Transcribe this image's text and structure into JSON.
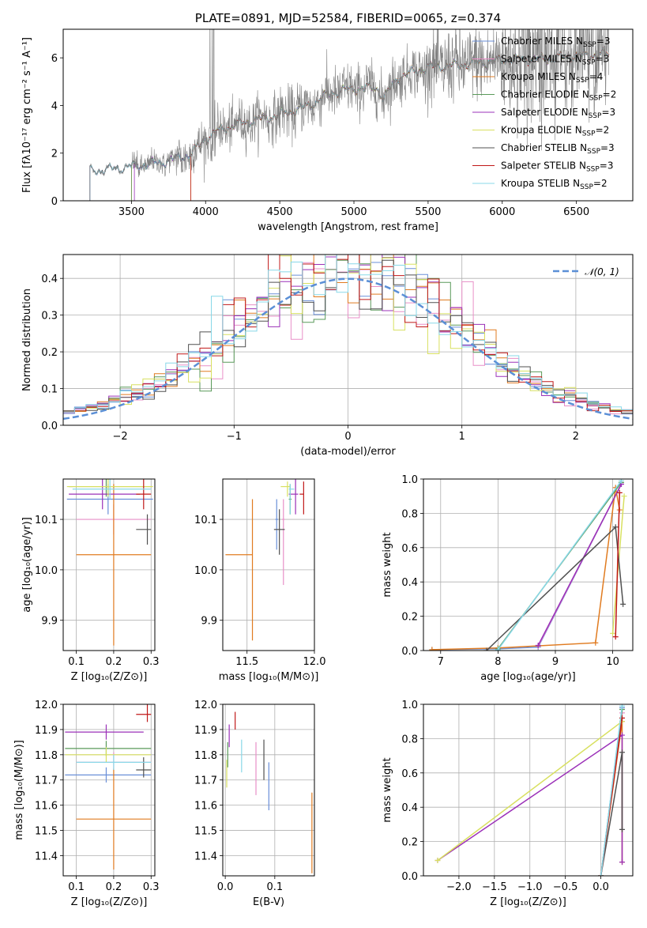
{
  "colors": {
    "Chabrier MILES": "#6a8fd8",
    "Salpeter MILES": "#e88fc8",
    "Kroupa MILES": "#e07b20",
    "Chabrier ELODIE": "#5a9a5a",
    "Salpeter ELODIE": "#9b30b8",
    "Kroupa ELODIE": "#d8e060",
    "Chabrier STELIB": "#505050",
    "Salpeter STELIB": "#c01818",
    "Kroupa STELIB": "#88d8e8",
    "spectrum": "#808080",
    "normal": "#5b8fd6"
  },
  "chart_data": [
    {
      "id": "spectrum",
      "type": "line",
      "title": "PLATE=0891, MJD=52584, FIBERID=0065, z=0.374",
      "xlabel": "wavelength [Angstrom, rest frame]",
      "ylabel": "Flux [fλ10⁻¹⁷ erg cm⁻² s⁻¹ A⁻¹]",
      "xlim": [
        3040,
        6880
      ],
      "ylim": [
        0,
        7.2
      ],
      "xticks": [
        3500,
        4000,
        4500,
        5000,
        5500,
        6000,
        6500
      ],
      "yticks": [
        0,
        2,
        4,
        6
      ],
      "grid": false,
      "legend_position": "top-right",
      "legend": [
        {
          "name": "Chabrier MILES",
          "sub": "N",
          "subs": "SSP",
          "val": "=3"
        },
        {
          "name": "Salpeter MILES",
          "sub": "N",
          "subs": "SSP",
          "val": "=3"
        },
        {
          "name": "Kroupa MILES",
          "sub": "N",
          "subs": "SSP",
          "val": "=4"
        },
        {
          "name": "Chabrier ELODIE",
          "sub": "N",
          "subs": "SSP",
          "val": "=2"
        },
        {
          "name": "Salpeter ELODIE",
          "sub": "N",
          "subs": "SSP",
          "val": "=3"
        },
        {
          "name": "Kroupa ELODIE",
          "sub": "N",
          "subs": "SSP",
          "val": "=2"
        },
        {
          "name": "Chabrier STELIB",
          "sub": "N",
          "subs": "SSP",
          "val": "=3"
        },
        {
          "name": "Salpeter STELIB",
          "sub": "N",
          "subs": "SSP",
          "val": "=3"
        },
        {
          "name": "Kroupa STELIB",
          "sub": "N",
          "subs": "SSP",
          "val": "=2"
        }
      ],
      "continuum_knots": [
        [
          3220,
          1.25
        ],
        [
          3400,
          1.35
        ],
        [
          3500,
          1.45
        ],
        [
          3700,
          1.6
        ],
        [
          3900,
          1.95
        ],
        [
          4000,
          2.6
        ],
        [
          4100,
          3.0
        ],
        [
          4300,
          3.35
        ],
        [
          4500,
          3.6
        ],
        [
          4700,
          4.0
        ],
        [
          4850,
          4.55
        ],
        [
          5000,
          4.7
        ],
        [
          5150,
          4.75
        ],
        [
          5200,
          4.3
        ],
        [
          5300,
          5.2
        ],
        [
          5500,
          5.6
        ],
        [
          5700,
          5.7
        ],
        [
          6000,
          5.9
        ],
        [
          6300,
          5.95
        ],
        [
          6500,
          6.1
        ],
        [
          6700,
          6.15
        ]
      ],
      "model_starts": [
        3220,
        3220,
        3500,
        3500,
        3520,
        3900,
        3220,
        3900,
        3220
      ]
    },
    {
      "id": "residuals",
      "type": "bar",
      "xlabel": "(data-model)/error",
      "ylabel": "Normed distribution",
      "xlim": [
        -2.5,
        2.5
      ],
      "ylim": [
        0,
        0.465
      ],
      "xticks": [
        -2,
        -1,
        0,
        1,
        2
      ],
      "yticks": [
        0.0,
        0.1,
        0.2,
        0.3,
        0.4
      ],
      "grid": true,
      "legend_position": "top-right",
      "legend": [
        {
          "name": "𝒩(0, 1)"
        }
      ],
      "bin_width": 0.1
    },
    {
      "id": "age-vs-Z",
      "type": "scatter",
      "xlabel": "Z [log₁₀(Z/Z⊙)]",
      "ylabel": "age  [log₁₀(age/yr)]",
      "xlim": [
        0.065,
        0.31
      ],
      "ylim": [
        9.84,
        10.18
      ],
      "xticks": [
        0.1,
        0.2,
        0.3
      ],
      "yticks": [
        9.9,
        10.0,
        10.1
      ],
      "grid": true,
      "points": [
        {
          "model": "Chabrier MILES",
          "x": 0.185,
          "y": 10.14,
          "xerr": [
            0.11,
            0.12
          ],
          "yerr": [
            0.03,
            0.03
          ]
        },
        {
          "model": "Salpeter MILES",
          "x": 0.2,
          "y": 10.1,
          "xerr": [
            0.1,
            0.1
          ],
          "yerr": [
            0.03,
            0.03
          ]
        },
        {
          "model": "Kroupa MILES",
          "x": 0.2,
          "y": 10.03,
          "xerr": [
            0.1,
            0.1
          ],
          "yerr": [
            0.18,
            0.14
          ]
        },
        {
          "model": "Chabrier ELODIE",
          "x": 0.18,
          "y": 10.165,
          "xerr": [
            0.1,
            0.12
          ],
          "yerr": [
            0.02,
            0.02
          ]
        },
        {
          "model": "Salpeter ELODIE",
          "x": 0.17,
          "y": 10.15,
          "xerr": [
            0.09,
            0.1
          ],
          "yerr": [
            0.03,
            0.03
          ]
        },
        {
          "model": "Kroupa ELODIE",
          "x": 0.185,
          "y": 10.165,
          "xerr": [
            0.11,
            0.12
          ],
          "yerr": [
            0.02,
            0.02
          ]
        },
        {
          "model": "Chabrier STELIB",
          "x": 0.29,
          "y": 10.08,
          "xerr": [
            0.03,
            0.01
          ],
          "yerr": [
            0.03,
            0.03
          ]
        },
        {
          "model": "Salpeter STELIB",
          "x": 0.28,
          "y": 10.15,
          "xerr": [
            0.02,
            0.02
          ],
          "yerr": [
            0.03,
            0.03
          ]
        },
        {
          "model": "Kroupa STELIB",
          "x": 0.19,
          "y": 10.16,
          "xerr": [
            0.1,
            0.11
          ],
          "yerr": [
            0.02,
            0.02
          ]
        }
      ]
    },
    {
      "id": "age-vs-mass",
      "type": "scatter",
      "xlabel": "mass [log₁₀(M/M⊙)]",
      "ylabel": "",
      "xlim": [
        11.32,
        12.0
      ],
      "ylim": [
        9.84,
        10.18
      ],
      "xticks": [
        11.5,
        12.0
      ],
      "yticks": [
        9.9,
        10.0,
        10.1
      ],
      "grid": true,
      "points": [
        {
          "model": "Chabrier MILES",
          "x": 11.72,
          "y": 10.1,
          "xerr": [
            0.01,
            0.01
          ],
          "yerr": [
            0.06,
            0.04
          ]
        },
        {
          "model": "Salpeter MILES",
          "x": 11.77,
          "y": 10.1,
          "xerr": [
            0.01,
            0.01
          ],
          "yerr": [
            0.13,
            0.04
          ]
        },
        {
          "model": "Kroupa MILES",
          "x": 11.54,
          "y": 10.03,
          "xerr": [
            0.2,
            0.0
          ],
          "yerr": [
            0.17,
            0.11
          ]
        },
        {
          "model": "Chabrier ELODIE",
          "x": 11.82,
          "y": 10.14,
          "xerr": [
            0.01,
            0.01
          ],
          "yerr": [
            0.03,
            0.03
          ]
        },
        {
          "model": "Salpeter ELODIE",
          "x": 11.86,
          "y": 10.15,
          "xerr": [
            0.05,
            0.02
          ],
          "yerr": [
            0.04,
            0.03
          ]
        },
        {
          "model": "Kroupa ELODIE",
          "x": 11.8,
          "y": 10.165,
          "xerr": [
            0.05,
            0.02
          ],
          "yerr": [
            0.02,
            0.01
          ]
        },
        {
          "model": "Chabrier STELIB",
          "x": 11.74,
          "y": 10.08,
          "xerr": [
            0.04,
            0.04
          ],
          "yerr": [
            0.05,
            0.04
          ]
        },
        {
          "model": "Salpeter STELIB",
          "x": 11.92,
          "y": 10.15,
          "xerr": [
            0.03,
            0.0
          ],
          "yerr": [
            0.04,
            0.025
          ]
        },
        {
          "model": "Kroupa STELIB",
          "x": 11.82,
          "y": 10.16,
          "xerr": [
            0.01,
            0.03
          ],
          "yerr": [
            0.05,
            0.01
          ]
        }
      ]
    },
    {
      "id": "mass-weight-vs-age",
      "type": "line",
      "xlabel": "age  [log₁₀(age/yr)]",
      "ylabel": "mass weight",
      "xlim": [
        6.7,
        10.35
      ],
      "ylim": [
        0,
        1.0
      ],
      "xticks": [
        7,
        8,
        9,
        10
      ],
      "yticks": [
        0.0,
        0.2,
        0.4,
        0.6,
        0.8,
        1.0
      ],
      "grid": true,
      "series": [
        {
          "model": "Chabrier MILES",
          "x": [
            6.85,
            8.0,
            8.7,
            10.15
          ],
          "y": [
            0.005,
            0.01,
            0.02,
            0.97
          ]
        },
        {
          "model": "Salpeter MILES",
          "x": [
            8.7,
            10.15
          ],
          "y": [
            0.025,
            0.97
          ]
        },
        {
          "model": "Kroupa MILES",
          "x": [
            6.85,
            8.0,
            9.7,
            10.05,
            10.12
          ],
          "y": [
            0.005,
            0.015,
            0.045,
            0.95,
            0.82
          ]
        },
        {
          "model": "Chabrier ELODIE",
          "x": [
            8.0,
            10.15
          ],
          "y": [
            0.01,
            0.98
          ]
        },
        {
          "model": "Salpeter ELODIE",
          "x": [
            8.7,
            10.15
          ],
          "y": [
            0.03,
            0.97
          ]
        },
        {
          "model": "Kroupa ELODIE",
          "x": [
            10.0,
            10.2
          ],
          "y": [
            0.1,
            0.9
          ]
        },
        {
          "model": "Chabrier STELIB",
          "x": [
            7.8,
            10.05,
            10.18
          ],
          "y": [
            0.0,
            0.72,
            0.27
          ]
        },
        {
          "model": "Salpeter STELIB",
          "x": [
            10.05,
            10.12
          ],
          "y": [
            0.08,
            0.92
          ]
        },
        {
          "model": "Kroupa STELIB",
          "x": [
            8.0,
            10.15
          ],
          "y": [
            0.005,
            0.99
          ]
        }
      ]
    },
    {
      "id": "mass-vs-Z",
      "type": "scatter",
      "xlabel": "Z [log₁₀(Z/Z⊙)]",
      "ylabel": "mass [log₁₀(M/M⊙)]",
      "xlim": [
        0.065,
        0.31
      ],
      "ylim": [
        11.32,
        12.0
      ],
      "xticks": [
        0.1,
        0.2,
        0.3
      ],
      "yticks": [
        11.4,
        11.5,
        11.6,
        11.7,
        11.8,
        11.9,
        12.0
      ],
      "grid": true,
      "points": [
        {
          "model": "Chabrier MILES",
          "x": 0.18,
          "y": 11.72,
          "xerr": [
            0.11,
            0.12
          ],
          "yerr": [
            0.03,
            0.03
          ]
        },
        {
          "model": "Salpeter MILES",
          "x": 0.2,
          "y": 11.77,
          "xerr": [
            0.1,
            0.1
          ],
          "yerr": [
            0.03,
            0.04
          ]
        },
        {
          "model": "Kroupa MILES",
          "x": 0.2,
          "y": 11.545,
          "xerr": [
            0.1,
            0.1
          ],
          "yerr": [
            0.2,
            0.2
          ]
        },
        {
          "model": "Chabrier ELODIE",
          "x": 0.18,
          "y": 11.825,
          "xerr": [
            0.11,
            0.12
          ],
          "yerr": [
            0.03,
            0.03
          ]
        },
        {
          "model": "Salpeter ELODIE",
          "x": 0.18,
          "y": 11.89,
          "xerr": [
            0.11,
            0.1
          ],
          "yerr": [
            0.03,
            0.03
          ]
        },
        {
          "model": "Kroupa ELODIE",
          "x": 0.18,
          "y": 11.8,
          "xerr": [
            0.11,
            0.12
          ],
          "yerr": [
            0.03,
            0.03
          ]
        },
        {
          "model": "Chabrier STELIB",
          "x": 0.28,
          "y": 11.74,
          "xerr": [
            0.02,
            0.02
          ],
          "yerr": [
            0.03,
            0.05
          ]
        },
        {
          "model": "Salpeter STELIB",
          "x": 0.29,
          "y": 11.96,
          "xerr": [
            0.03,
            0.01
          ],
          "yerr": [
            0.03,
            0.04
          ]
        },
        {
          "model": "Kroupa STELIB",
          "x": 0.2,
          "y": 11.77,
          "xerr": [
            0.1,
            0.1
          ],
          "yerr": [
            0.03,
            0.03
          ]
        }
      ]
    },
    {
      "id": "mass-vs-EBV",
      "type": "scatter",
      "xlabel": "E(B-V)",
      "ylabel": "",
      "xlim": [
        -0.005,
        0.18
      ],
      "ylim": [
        11.32,
        12.0
      ],
      "xticks": [
        0.0,
        0.1
      ],
      "yticks": [
        11.4,
        11.5,
        11.6,
        11.7,
        11.8,
        11.9,
        12.0
      ],
      "grid": true,
      "points": [
        {
          "model": "Chabrier MILES",
          "x": 0.088,
          "y": 11.7,
          "yerr": [
            0.12,
            0.07
          ]
        },
        {
          "model": "Salpeter MILES",
          "x": 0.062,
          "y": 11.76,
          "yerr": [
            0.12,
            0.09
          ]
        },
        {
          "model": "Kroupa MILES",
          "x": 0.175,
          "y": 11.5,
          "yerr": [
            0.17,
            0.15
          ]
        },
        {
          "model": "Chabrier ELODIE",
          "x": 0.005,
          "y": 11.8,
          "yerr": [
            0.05,
            0.05
          ]
        },
        {
          "model": "Salpeter ELODIE",
          "x": 0.008,
          "y": 11.88,
          "yerr": [
            0.05,
            0.04
          ]
        },
        {
          "model": "Kroupa ELODIE",
          "x": 0.003,
          "y": 11.72,
          "yerr": [
            0.05,
            0.06
          ]
        },
        {
          "model": "Chabrier STELIB",
          "x": 0.078,
          "y": 11.8,
          "yerr": [
            0.1,
            0.06
          ]
        },
        {
          "model": "Salpeter STELIB",
          "x": 0.02,
          "y": 11.93,
          "yerr": [
            0.03,
            0.04
          ]
        },
        {
          "model": "Kroupa STELIB",
          "x": 0.033,
          "y": 11.8,
          "yerr": [
            0.07,
            0.06
          ]
        }
      ]
    },
    {
      "id": "mass-weight-vs-Z",
      "type": "line",
      "xlabel": "Z [log₁₀(Z/Z⊙)]",
      "ylabel": "mass weight",
      "xlim": [
        -2.5,
        0.45
      ],
      "ylim": [
        0,
        1.0
      ],
      "xticks": [
        -2.0,
        -1.5,
        -1.0,
        -0.5,
        0.0
      ],
      "yticks": [
        0.0,
        0.2,
        0.4,
        0.6,
        0.8,
        1.0
      ],
      "grid": true,
      "series": [
        {
          "model": "Chabrier MILES",
          "x": [
            0.0,
            0.3
          ],
          "y": [
            0.0,
            0.98
          ]
        },
        {
          "model": "Salpeter MILES",
          "x": [
            0.0,
            0.3
          ],
          "y": [
            0.0,
            0.95
          ]
        },
        {
          "model": "Kroupa MILES",
          "x": [
            0.0,
            0.3,
            0.3
          ],
          "y": [
            0.0,
            0.9,
            0.08
          ]
        },
        {
          "model": "Chabrier ELODIE",
          "x": [
            0.0,
            0.3
          ],
          "y": [
            0.0,
            0.97
          ]
        },
        {
          "model": "Salpeter ELODIE",
          "x": [
            -2.3,
            0.3,
            0.3
          ],
          "y": [
            0.09,
            0.82,
            0.08
          ]
        },
        {
          "model": "Kroupa ELODIE",
          "x": [
            -2.3,
            0.3
          ],
          "y": [
            0.09,
            0.9
          ]
        },
        {
          "model": "Chabrier STELIB",
          "x": [
            0.0,
            0.3,
            0.3
          ],
          "y": [
            0.0,
            0.72,
            0.27
          ]
        },
        {
          "model": "Salpeter STELIB",
          "x": [
            0.0,
            0.3
          ],
          "y": [
            0.0,
            0.92
          ]
        },
        {
          "model": "Kroupa STELIB",
          "x": [
            0.0,
            0.3
          ],
          "y": [
            0.0,
            0.99
          ]
        }
      ]
    }
  ]
}
